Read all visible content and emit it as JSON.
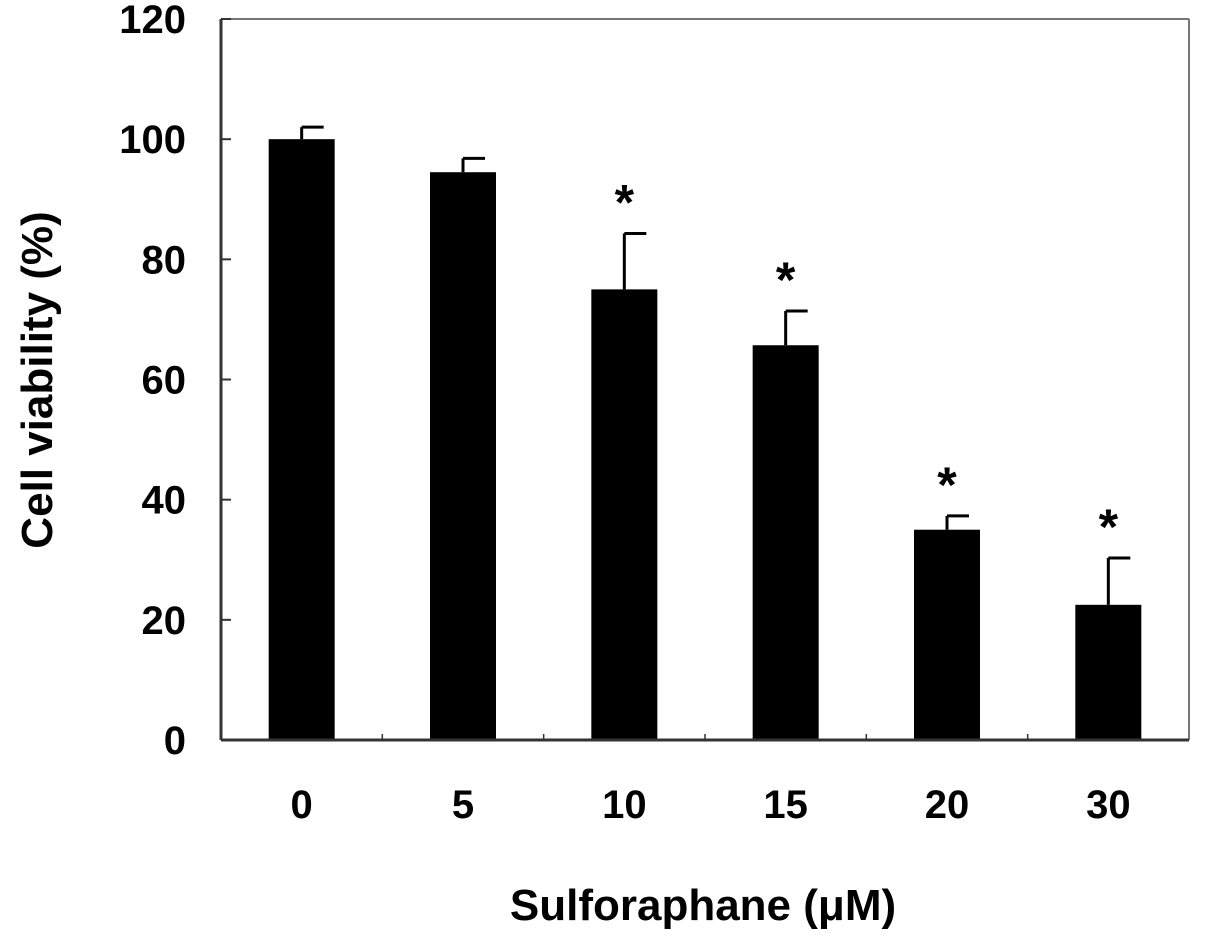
{
  "chart_data": {
    "type": "bar",
    "title": "",
    "xlabel": "Sulforaphane (μM)",
    "ylabel": "Cell viability (%)",
    "categories": [
      "0",
      "5",
      "10",
      "15",
      "20",
      "30"
    ],
    "values": [
      100,
      94.5,
      75,
      65.7,
      35,
      22.5
    ],
    "error_plus": [
      2,
      2.3,
      9.3,
      5.7,
      2.3,
      7.8
    ],
    "significance": [
      "",
      "",
      "*",
      "*",
      "*",
      "*"
    ],
    "ylim": [
      0,
      120
    ],
    "yticks": [
      0,
      20,
      40,
      60,
      80,
      100,
      120
    ],
    "grid": false,
    "legend": "none",
    "colors": {
      "bar": "#000000",
      "axis": "#333333",
      "frame": "#777777"
    }
  }
}
